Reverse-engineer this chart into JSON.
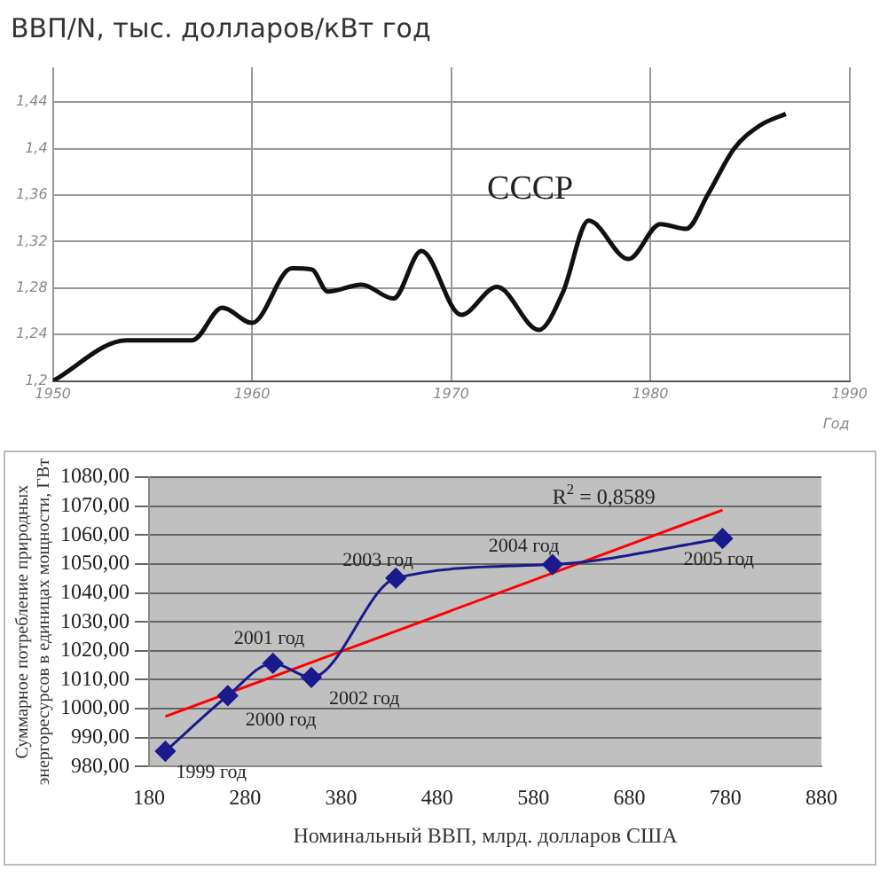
{
  "chart_data": [
    {
      "type": "line",
      "title": "ВВП/N, тыс. долларов/кВт год",
      "xlabel": "Год",
      "x": [
        1950,
        1953.7,
        1957,
        1958.5,
        1960,
        1962,
        1963,
        1963.8,
        1965.5,
        1967.1,
        1968.5,
        1970.5,
        1972.3,
        1974.4,
        1975.6,
        1976.9,
        1978.9,
        1980.5,
        1981.8,
        1982.9,
        1984.2,
        1985.5,
        1986.8
      ],
      "series": [
        {
          "color": "#111111",
          "values": [
            1.2,
            1.235,
            1.235,
            1.263,
            1.25,
            1.297,
            1.296,
            1.277,
            1.283,
            1.271,
            1.312,
            1.257,
            1.281,
            1.244,
            1.276,
            1.338,
            1.305,
            1.335,
            1.331,
            1.361,
            1.4,
            1.42,
            1.43
          ]
        }
      ],
      "xlim": [
        1950,
        1990
      ],
      "xticks": [
        1950,
        1960,
        1970,
        1980,
        1990
      ],
      "ylim": [
        1.2,
        1.47
      ],
      "yticks": [
        {
          "value": 1.2,
          "label": "1,2"
        },
        {
          "value": 1.24,
          "label": "1,24"
        },
        {
          "value": 1.28,
          "label": "1,28"
        },
        {
          "value": 1.32,
          "label": "1,32"
        },
        {
          "value": 1.36,
          "label": "1,36"
        },
        {
          "value": 1.4,
          "label": "1,4"
        },
        {
          "value": 1.44,
          "label": "1,44"
        }
      ],
      "grid": true,
      "legend": false,
      "line_style": "solid",
      "marker": "none",
      "annotations": [
        "СССР"
      ]
    },
    {
      "type": "line",
      "xlabel": "Номинальный ВВП, млрд. долларов США",
      "ylabel": "Суммарное потребление природных энергоресурсов в единицах мощности, ГВт",
      "series": [
        {
          "color": "#1a1a8c",
          "marker": "diamond",
          "x": [
            197,
            262,
            309,
            349,
            437,
            600,
            777
          ],
          "values": [
            985.3,
            1004.5,
            1015.7,
            1010.8,
            1045.1,
            1049.8,
            1058.8
          ]
        },
        {
          "color": "#ff0000",
          "marker": "none",
          "x": [
            197,
            777
          ],
          "values": [
            997.3,
            1068.6
          ]
        }
      ],
      "xlim": [
        180,
        880
      ],
      "xticks": [
        180,
        280,
        380,
        480,
        580,
        680,
        780,
        880
      ],
      "ylim": [
        980,
        1080
      ],
      "yticks": [
        {
          "value": 980,
          "label": "980,00"
        },
        {
          "value": 990,
          "label": "990,00"
        },
        {
          "value": 1000,
          "label": "1000,00"
        },
        {
          "value": 1010,
          "label": "1010,00"
        },
        {
          "value": 1020,
          "label": "1020,00"
        },
        {
          "value": 1030,
          "label": "1030,00"
        },
        {
          "value": 1040,
          "label": "1040,00"
        },
        {
          "value": 1050,
          "label": "1050,00"
        },
        {
          "value": 1060,
          "label": "1060,00"
        },
        {
          "value": 1070,
          "label": "1070,00"
        },
        {
          "value": 1080,
          "label": "1080,00"
        }
      ],
      "grid": "y",
      "legend": false,
      "line_style": "solid",
      "annotations": [
        {
          "text": "1999 год",
          "x": 197,
          "y": 985.3
        },
        {
          "text": "2000 год",
          "x": 262,
          "y": 1004.5
        },
        {
          "text": "2001 год",
          "x": 309,
          "y": 1015.7
        },
        {
          "text": "2002 год",
          "x": 349,
          "y": 1010.8
        },
        {
          "text": "2003 год",
          "x": 437,
          "y": 1045.1
        },
        {
          "text": "2004 год",
          "x": 600,
          "y": 1049.8
        },
        {
          "text": "2005 год",
          "x": 777,
          "y": 1058.8
        },
        "R$^{2}$ = 0,8589"
      ]
    }
  ]
}
